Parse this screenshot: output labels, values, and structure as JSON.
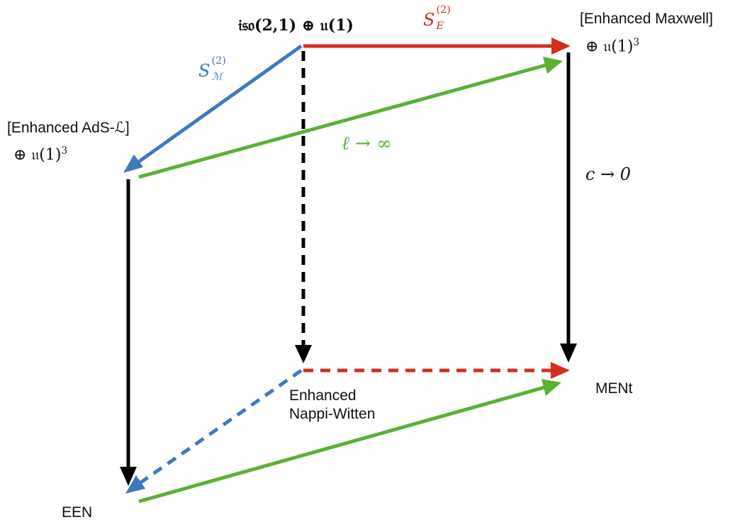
{
  "nodes": {
    "top_center": {
      "main": "𝔦𝔰𝔬(2,1) ⊕ 𝔲(1)"
    },
    "top_right": {
      "line1": "[Enhanced Maxwell]",
      "line2": "⊕ 𝔲(1)",
      "sup": "3"
    },
    "left": {
      "line1": "[Enhanced AdS-ℒ]",
      "line2": "⊕ 𝔲(1)",
      "sup": "3"
    },
    "bottom_center": {
      "line1": "Enhanced",
      "line2": "Nappi-Witten"
    },
    "bottom_right": {
      "label": "MENt"
    },
    "bottom_left": {
      "label": "EEN"
    }
  },
  "edges": {
    "red": {
      "symbol": "S",
      "sup": "(2)",
      "sub": "E",
      "color": "#d42e1c"
    },
    "blue": {
      "symbol": "S",
      "sup": "(2)",
      "sub": "ℳ",
      "color": "#3f79bd"
    },
    "green": {
      "label": "ℓ → ∞",
      "color": "#5bb132"
    },
    "black": {
      "label": "c → 0",
      "color": "#000000"
    }
  }
}
